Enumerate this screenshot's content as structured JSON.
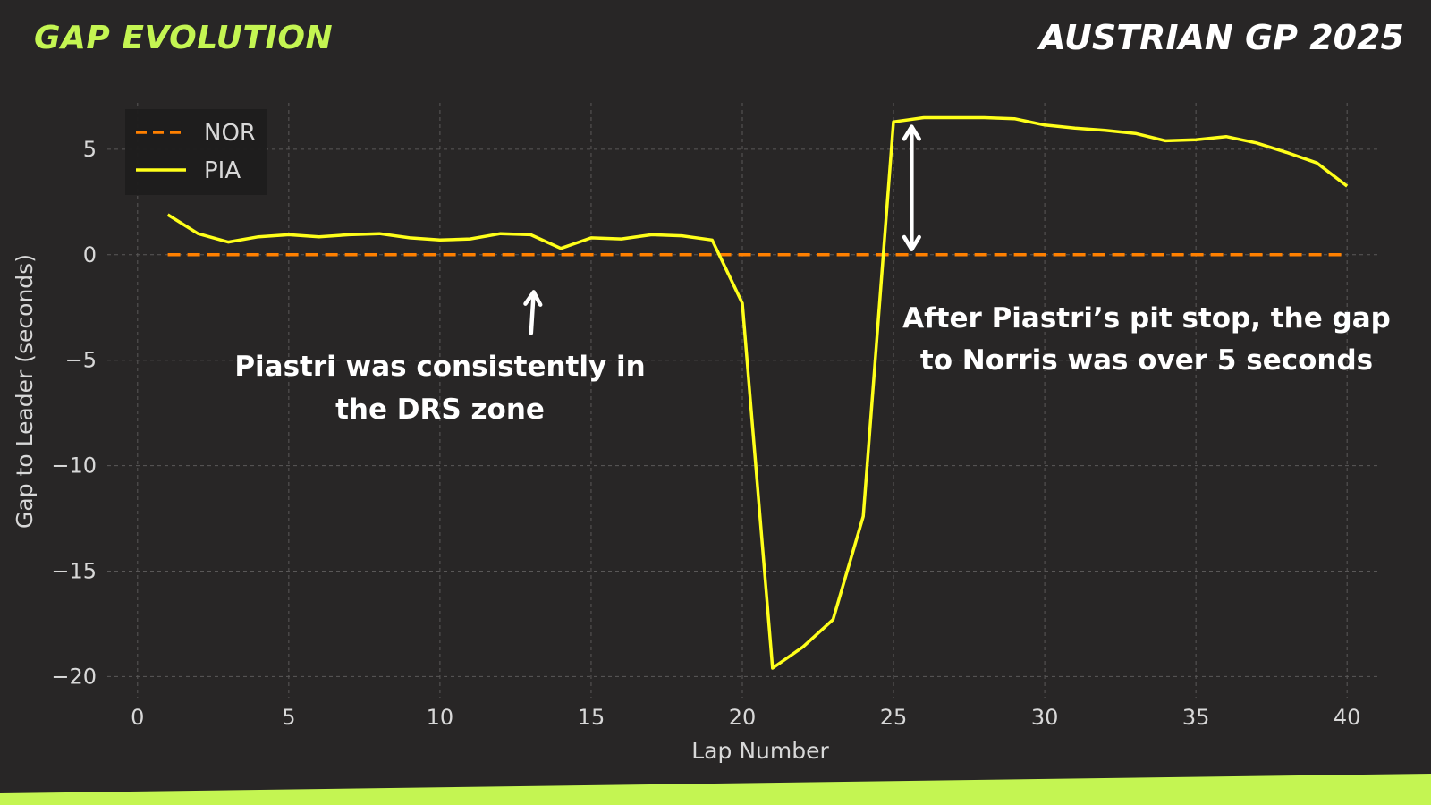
{
  "header": {
    "left_title": "GAP EVOLUTION",
    "right_title": "AUSTRIAN GP 2025"
  },
  "colors": {
    "accent": "#c4f552",
    "background": "#282626",
    "nor": "#ff8000",
    "pia": "#ffff1a",
    "text": "#ffffff",
    "tick": "#d8d8d8"
  },
  "chart_data": {
    "type": "line",
    "xlabel": "Lap Number",
    "ylabel": "Gap to Leader (seconds)",
    "xlim": [
      -1,
      41
    ],
    "ylim": [
      -21,
      7.2
    ],
    "xticks": [
      0,
      5,
      10,
      15,
      20,
      25,
      30,
      35,
      40
    ],
    "yticks": [
      5,
      0,
      -5,
      -10,
      -15,
      -20
    ],
    "ytick_labels": [
      "5",
      "0",
      "−5",
      "−10",
      "−15",
      "−20"
    ],
    "grid": true,
    "legend_position": "top-left",
    "series": [
      {
        "name": "NOR",
        "style": "dashed",
        "color": "#ff8000",
        "x": [
          1,
          40
        ],
        "y": [
          0,
          0
        ]
      },
      {
        "name": "PIA",
        "style": "solid",
        "color": "#ffff1a",
        "x": [
          1,
          2,
          3,
          4,
          5,
          6,
          7,
          8,
          9,
          10,
          11,
          12,
          13,
          14,
          15,
          16,
          17,
          18,
          19,
          20,
          21,
          22,
          23,
          24,
          25,
          26,
          27,
          28,
          29,
          30,
          31,
          32,
          33,
          34,
          35,
          36,
          37,
          38,
          39,
          40
        ],
        "y": [
          1.9,
          1.0,
          0.6,
          0.85,
          0.95,
          0.85,
          0.95,
          1.0,
          0.8,
          0.7,
          0.75,
          1.0,
          0.95,
          0.3,
          0.8,
          0.75,
          0.95,
          0.9,
          0.7,
          -2.3,
          -19.6,
          -18.6,
          -17.3,
          -12.4,
          6.3,
          6.5,
          6.5,
          6.5,
          6.45,
          6.15,
          6.0,
          5.9,
          5.75,
          5.4,
          5.45,
          5.6,
          5.3,
          4.85,
          4.35,
          3.25
        ]
      }
    ],
    "annotations": [
      {
        "text_lines": [
          "Piastri was consistently in",
          "the DRS zone"
        ],
        "arrow": "single",
        "arrow_from": [
          12.6,
          -3.8
        ],
        "arrow_to": [
          13.1,
          -1.6
        ]
      },
      {
        "text_lines": [
          "After Piastri’s pit stop, the gap",
          "to Norris was over 5 seconds"
        ],
        "arrow": "double",
        "arrow_from": [
          25.6,
          0.6
        ],
        "arrow_to": [
          25.6,
          5.9
        ]
      }
    ]
  }
}
